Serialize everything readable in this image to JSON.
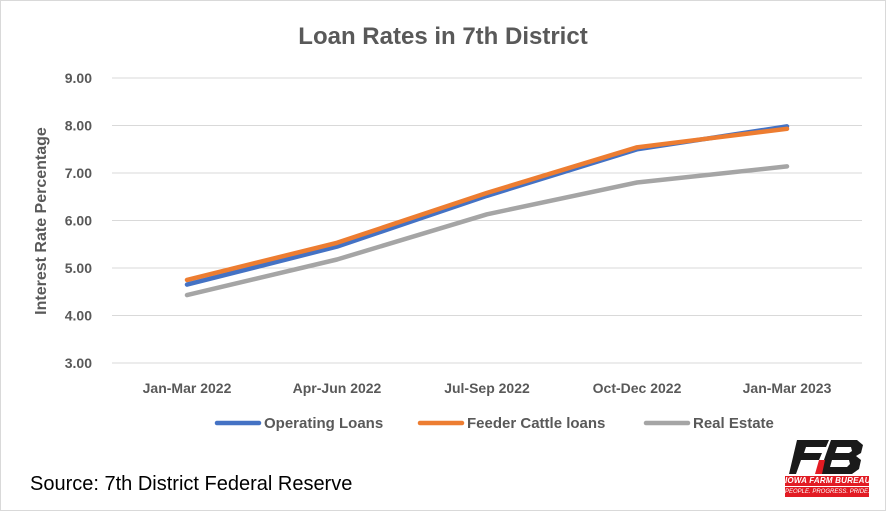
{
  "chart_data": {
    "type": "line",
    "title": "Loan Rates in 7th District",
    "xlabel": "",
    "ylabel": "Interest Rate Percentage",
    "categories": [
      "Jan-Mar 2022",
      "Apr-Jun 2022",
      "Jul-Sep 2022",
      "Oct-Dec 2022",
      "Jan-Mar 2023"
    ],
    "ylim": [
      3.0,
      9.0
    ],
    "yticks": [
      "3.00",
      "4.00",
      "5.00",
      "6.00",
      "7.00",
      "8.00",
      "9.00"
    ],
    "grid": true,
    "legend_position": "bottom",
    "series": [
      {
        "name": "Operating Loans",
        "color": "#4472c4",
        "values": [
          4.65,
          5.45,
          6.52,
          7.5,
          7.98
        ]
      },
      {
        "name": "Feeder Cattle loans",
        "color": "#ed7d31",
        "values": [
          4.75,
          5.53,
          6.58,
          7.54,
          7.93
        ]
      },
      {
        "name": "Real Estate",
        "color": "#a5a5a5",
        "values": [
          4.43,
          5.18,
          6.13,
          6.8,
          7.14
        ]
      }
    ]
  },
  "source": "Source: 7th District Federal Reserve",
  "logo": {
    "name": "iowa-farm-bureau-logo",
    "text": "IOWA FARM BUREAU",
    "tagline": "PEOPLE. PROGRESS. PRIDE.",
    "color": "#e21b23"
  }
}
